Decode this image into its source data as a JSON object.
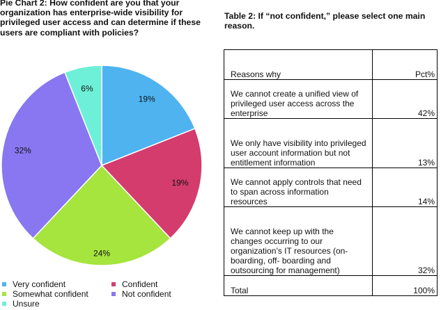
{
  "pie_title": "Pie Chart 2: How confident are you that your organization has enterprise-wide visibility for privileged user access and can determine if these users are compliant with policies?",
  "table_title": "Table 2: If “not confident,” please select one main reason.",
  "table": {
    "header": {
      "reason": "Reasons why",
      "pct": "Pct%"
    },
    "rows": [
      {
        "reason": "We cannot create a unified view of privileged user access across the enterprise",
        "pct": "42%"
      },
      {
        "reason": "We only have visibility into privileged user account information but not entitlement information",
        "pct": "13%"
      },
      {
        "reason": "We cannot apply controls that need to span across information resources",
        "pct": "14%"
      },
      {
        "reason": "We cannot keep up with the changes occurring to our organization’s IT resources (on-boarding, off- boarding and outsourcing for management)",
        "pct": "32%"
      }
    ],
    "total": {
      "reason": "Total",
      "pct": "100%"
    }
  },
  "chart_data": {
    "type": "pie",
    "categories": [
      "Very confident",
      "Confident",
      "Somewhat confident",
      "Not confident",
      "Unsure"
    ],
    "values": [
      19,
      19,
      24,
      32,
      6
    ],
    "labels": [
      "19%",
      "19%",
      "24%",
      "32%",
      "6%"
    ],
    "colors": [
      "#4fb3f0",
      "#d43c6e",
      "#a6e43e",
      "#8877f0",
      "#6ef0d8"
    ],
    "legend_position": "bottom",
    "start": "12 o'clock, clockwise"
  }
}
